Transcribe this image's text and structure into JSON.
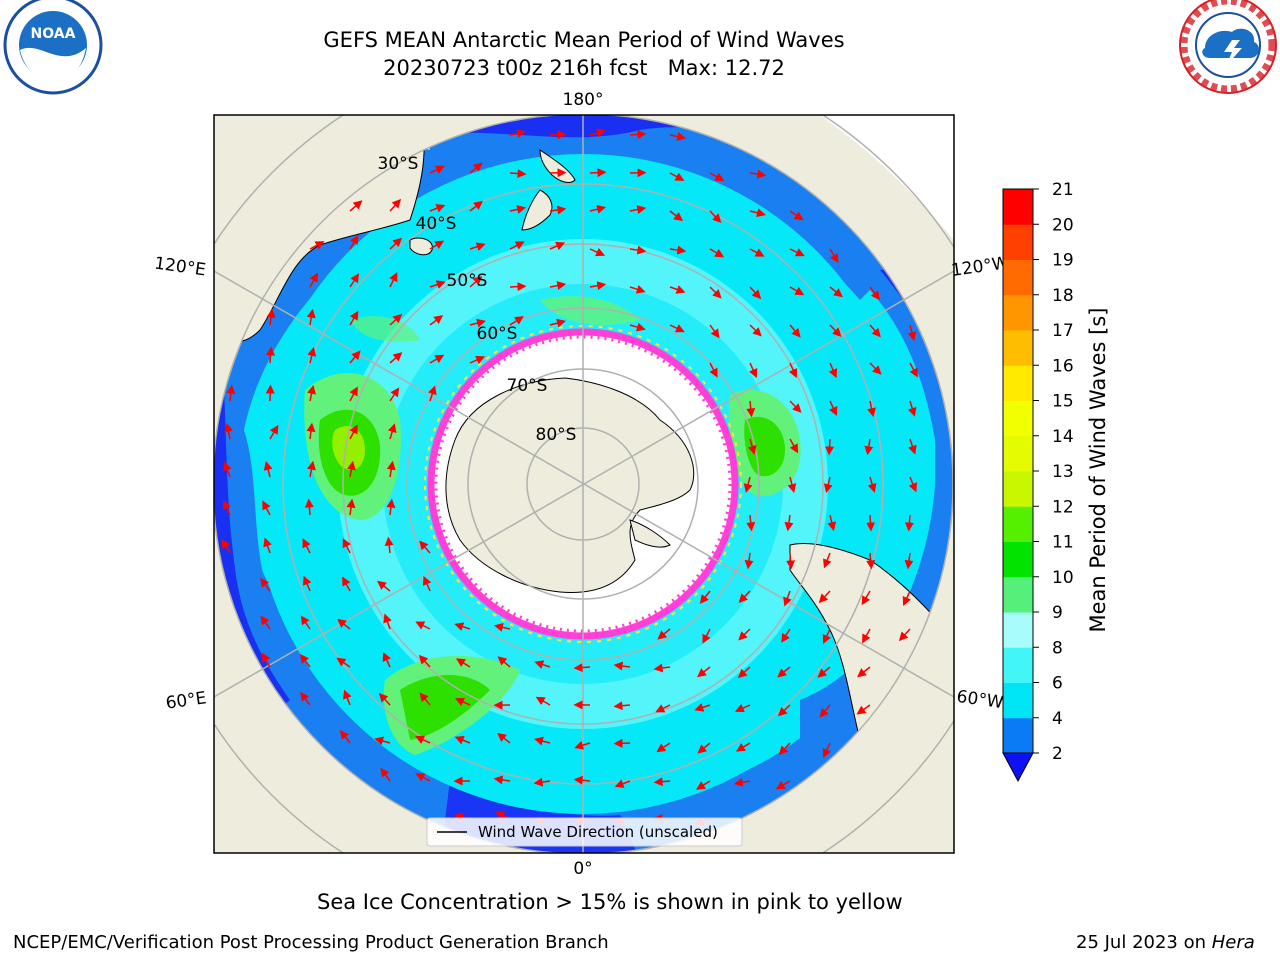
{
  "title": {
    "line1": "GEFS MEAN Antarctic Mean Period of Wind Waves",
    "line2": "20230723 t00z 216h fcst   Max: 12.72"
  },
  "map": {
    "projection": "south-polar-stereographic",
    "lon_labels": [
      "180°",
      "120°E",
      "120°W",
      "60°E",
      "60°W",
      "0°"
    ],
    "lat_labels": [
      "30°S",
      "40°S",
      "50°S",
      "60°S",
      "70°S",
      "80°S"
    ],
    "legend_label": "Wind Wave Direction (unscaled)",
    "colors": {
      "land": "#eeecdc",
      "deep_blue": "#1a22f2",
      "blue": "#1a80f2",
      "cyan": "#05e8f8",
      "light_cyan": "#63f6fb",
      "pale_cyan": "#b2fdfd",
      "light_green": "#62f27b",
      "green": "#2de000",
      "yellow_green": "#c2f600",
      "sea_ice_pink": "#ff3fd8",
      "sea_ice_yellow": "#ffe43c",
      "arrow": "#ff0000"
    }
  },
  "colorbar": {
    "label": "Mean Period of Wind Waves [s]",
    "ticks": [
      "2",
      "4",
      "6",
      "8",
      "9",
      "10",
      "11",
      "12",
      "13",
      "14",
      "15",
      "16",
      "17",
      "18",
      "19",
      "20",
      "21"
    ],
    "bins": [
      {
        "from": 2,
        "to": 4,
        "color": "#0a7af5"
      },
      {
        "from": 4,
        "to": 6,
        "color": "#00e5f6"
      },
      {
        "from": 6,
        "to": 8,
        "color": "#42f6f8"
      },
      {
        "from": 8,
        "to": 9,
        "color": "#a8fcfa"
      },
      {
        "from": 9,
        "to": 10,
        "color": "#55f07a"
      },
      {
        "from": 10,
        "to": 11,
        "color": "#00e400"
      },
      {
        "from": 11,
        "to": 12,
        "color": "#54f000"
      },
      {
        "from": 12,
        "to": 13,
        "color": "#c8f700"
      },
      {
        "from": 13,
        "to": 14,
        "color": "#e4fb00"
      },
      {
        "from": 14,
        "to": 15,
        "color": "#f2ff00"
      },
      {
        "from": 15,
        "to": 16,
        "color": "#ffea00"
      },
      {
        "from": 16,
        "to": 17,
        "color": "#ffbd00"
      },
      {
        "from": 17,
        "to": 18,
        "color": "#ff9600"
      },
      {
        "from": 18,
        "to": 19,
        "color": "#ff6b00"
      },
      {
        "from": 19,
        "to": 20,
        "color": "#ff4000"
      },
      {
        "from": 20,
        "to": 21,
        "color": "#ff0000"
      }
    ],
    "extend_color": "#1010f8"
  },
  "caption": "Sea Ice Concentration > 15% is shown in pink to yellow",
  "footer": {
    "left": "NCEP/EMC/Verification Post Processing Product Generation Branch",
    "date": "25 Jul 2023 on ",
    "machine": "Hera"
  },
  "logos": {
    "noaa": "NOAA",
    "nws": "NATIONAL WEATHER SERVICE"
  }
}
